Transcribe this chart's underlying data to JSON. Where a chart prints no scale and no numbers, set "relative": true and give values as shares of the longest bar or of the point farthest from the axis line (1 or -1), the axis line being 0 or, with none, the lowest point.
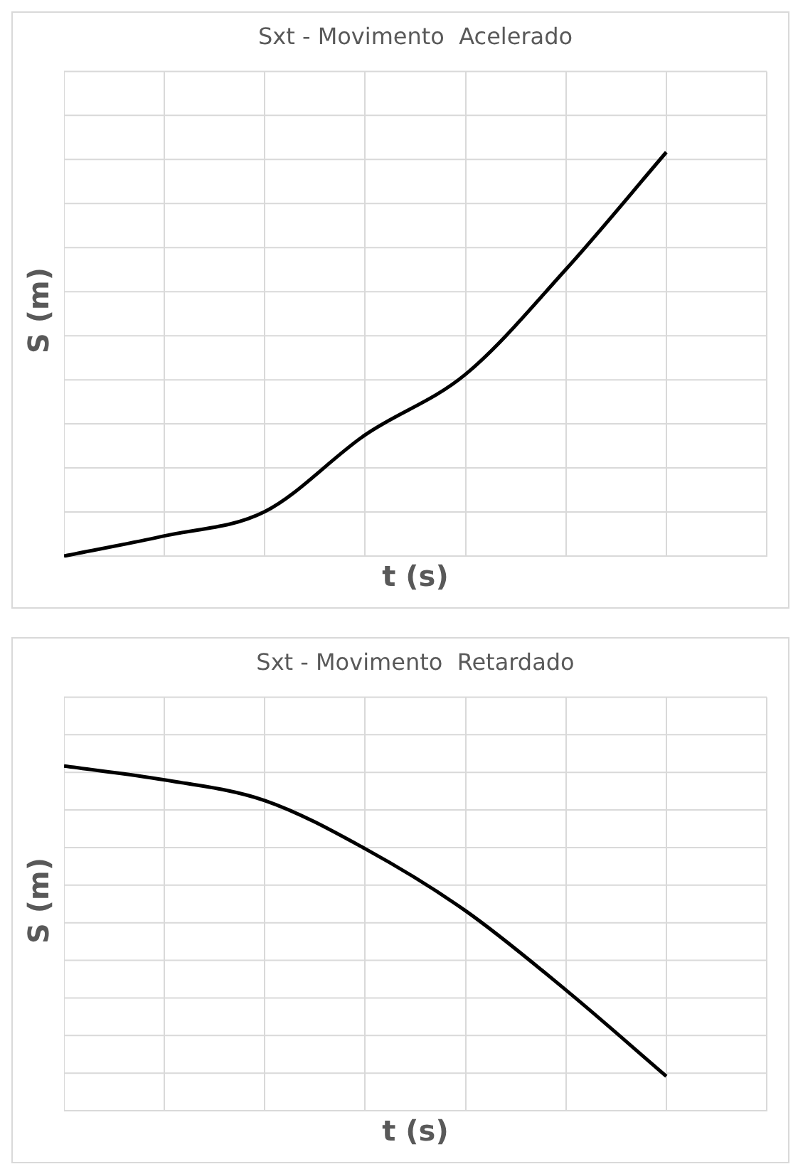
{
  "chart_data": [
    {
      "type": "line",
      "title": "Sxt - Movimento  Acelerado",
      "xlabel": "t (s)",
      "ylabel": "S (m)",
      "relative": true,
      "grid": true,
      "legend": false,
      "marker": "none",
      "line_style": "solid",
      "categories": [
        null,
        null,
        null,
        null,
        null,
        null,
        null,
        null
      ],
      "series": [
        {
          "color": "#000000",
          "values": [
            0,
            0.05,
            0.11,
            0.3,
            0.45,
            0.71,
            1,
            null
          ]
        }
      ]
    },
    {
      "type": "line",
      "title": "Sxt - Movimento  Retardado",
      "xlabel": "t (s)",
      "ylabel": "S (m)",
      "relative": true,
      "grid": true,
      "legend": false,
      "marker": "none",
      "line_style": "solid",
      "categories": [
        null,
        null,
        null,
        null,
        null,
        null,
        null,
        null
      ],
      "series": [
        {
          "color": "#000000",
          "values": [
            1,
            0.96,
            0.9,
            0.76,
            0.58,
            0.35,
            0.1,
            null
          ]
        }
      ]
    }
  ]
}
